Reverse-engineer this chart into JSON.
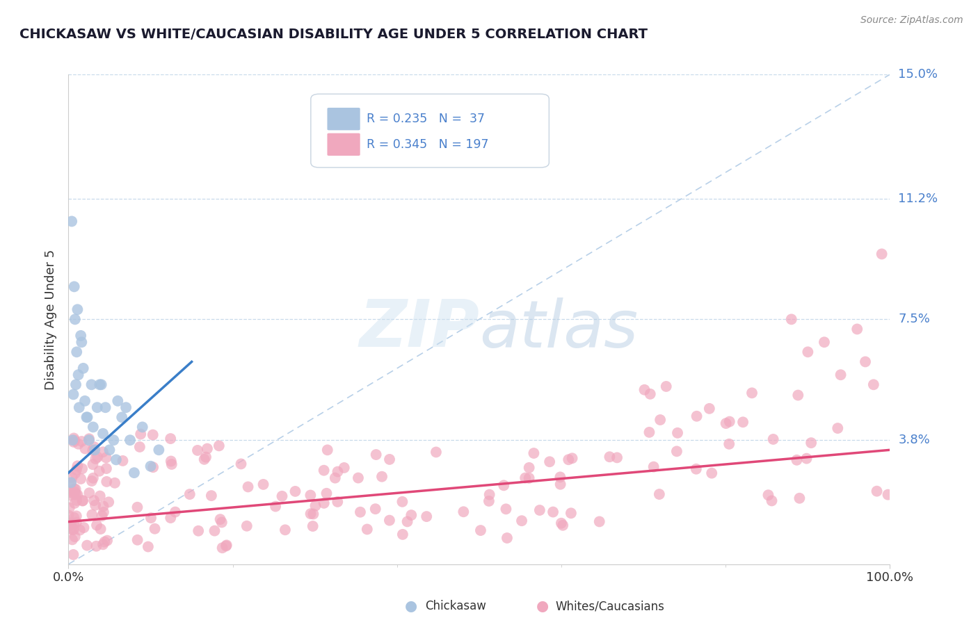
{
  "title": "CHICKASAW VS WHITE/CAUCASIAN DISABILITY AGE UNDER 5 CORRELATION CHART",
  "source_text": "Source: ZipAtlas.com",
  "ylabel": "Disability Age Under 5",
  "xlim": [
    0,
    100
  ],
  "ylim": [
    0,
    15
  ],
  "ytick_vals": [
    3.8,
    7.5,
    11.2,
    15.0
  ],
  "ytick_labels": [
    "3.8%",
    "7.5%",
    "11.2%",
    "15.0%"
  ],
  "xtick_vals": [
    0,
    100
  ],
  "xtick_labels": [
    "0.0%",
    "100.0%"
  ],
  "legend_r1": "R = 0.235",
  "legend_n1": "N =  37",
  "legend_r2": "R = 0.345",
  "legend_n2": "N = 197",
  "chickasaw_color": "#aac4e0",
  "white_color": "#f0a8be",
  "trend_blue": "#3a7ec8",
  "trend_pink": "#e04878",
  "ref_line_color": "#b8d0e8",
  "background_color": "#ffffff",
  "watermark_color": "#d8e8f4",
  "tick_color": "#4a80cc",
  "label_color": "#333333",
  "grid_color": "#c8daea",
  "spine_color": "#cccccc",
  "legend_border": "#c8d4e0",
  "source_color": "#888888",
  "title_color": "#1a1a2e",
  "bottom_legend_color": "#333333"
}
